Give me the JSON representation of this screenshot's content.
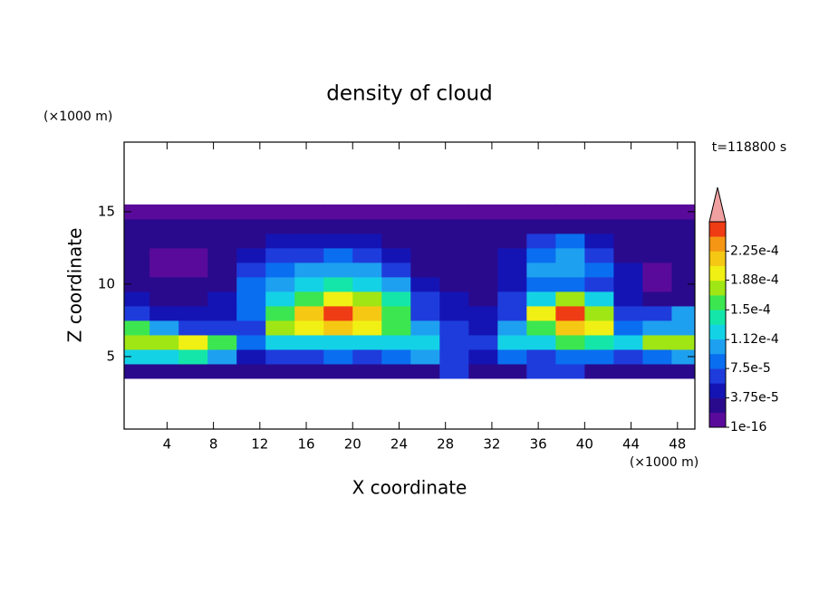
{
  "chart_data": {
    "type": "contour",
    "title": "density of cloud",
    "x_label": "X coordinate",
    "y_label": "Z coordinate",
    "x_unit": "(×1000 m)",
    "y_unit": "(×1000 m)",
    "annotation": "t=118800 s",
    "xlim": [
      0.3,
      49.5
    ],
    "ylim": [
      0,
      19.8
    ],
    "xticks": [
      4,
      8,
      12,
      16,
      20,
      24,
      28,
      32,
      36,
      40,
      44,
      48
    ],
    "yticks": [
      5,
      10,
      15
    ],
    "x": [
      1.25,
      3.75,
      6.25,
      8.75,
      11.25,
      13.75,
      16.25,
      18.75,
      21.25,
      23.75,
      26.25,
      28.75,
      31.25,
      33.75,
      36.25,
      38.75,
      41.25,
      43.75,
      46.25,
      48.75
    ],
    "y": [
      4,
      5,
      6,
      7,
      8,
      9,
      10,
      11,
      12,
      13,
      14,
      15
    ],
    "z": [
      [
        3e-05,
        3e-05,
        3e-05,
        3e-05,
        3e-05,
        3e-05,
        3e-05,
        3e-05,
        3e-05,
        3e-05,
        3e-05,
        6.5e-05,
        3e-05,
        3e-05,
        6.5e-05,
        6.5e-05,
        3e-05,
        3e-05,
        3e-05,
        3e-05
      ],
      [
        0.00012,
        0.00012,
        0.00014,
        0.0001,
        5e-05,
        6.5e-05,
        6.5e-05,
        8.5e-05,
        6.5e-05,
        8.5e-05,
        0.0001,
        6.5e-05,
        5e-05,
        8.5e-05,
        6.5e-05,
        8.5e-05,
        8.5e-05,
        6.5e-05,
        8.5e-05,
        0.0001
      ],
      [
        0.00018,
        0.00018,
        0.0002,
        0.00016,
        8.5e-05,
        0.00012,
        0.00012,
        0.00012,
        0.00012,
        0.00012,
        0.00012,
        6.5e-05,
        6.5e-05,
        0.00012,
        0.00012,
        0.00016,
        0.00014,
        0.00012,
        0.00018,
        0.00018
      ],
      [
        0.00016,
        0.0001,
        6.5e-05,
        6.5e-05,
        6.5e-05,
        0.00018,
        0.0002,
        0.000215,
        0.0002,
        0.00016,
        0.0001,
        6.5e-05,
        5e-05,
        0.0001,
        0.00016,
        0.000215,
        0.0002,
        8.5e-05,
        0.0001,
        0.0001
      ],
      [
        6.5e-05,
        5e-05,
        5e-05,
        5e-05,
        8.5e-05,
        0.00016,
        0.000215,
        0.00025,
        0.000215,
        0.00016,
        6.5e-05,
        5e-05,
        5e-05,
        6.5e-05,
        0.0002,
        0.00025,
        0.00018,
        6.5e-05,
        6.5e-05,
        0.0001
      ],
      [
        5e-05,
        3e-05,
        3e-05,
        5e-05,
        8.5e-05,
        0.00012,
        0.00016,
        0.0002,
        0.00018,
        0.00014,
        6.5e-05,
        5e-05,
        3e-05,
        6.5e-05,
        0.00012,
        0.00018,
        0.00012,
        5e-05,
        3e-05,
        3e-05
      ],
      [
        3e-05,
        3e-05,
        3e-05,
        3e-05,
        8.5e-05,
        0.0001,
        0.00012,
        0.00014,
        0.00012,
        0.0001,
        5e-05,
        3e-05,
        3e-05,
        5e-05,
        8.5e-05,
        8.5e-05,
        6.5e-05,
        5e-05,
        1e-05,
        3e-05
      ],
      [
        3e-05,
        1e-05,
        1e-05,
        3e-05,
        6.5e-05,
        8.5e-05,
        0.0001,
        0.0001,
        0.0001,
        6.5e-05,
        3e-05,
        3e-05,
        3e-05,
        5e-05,
        0.0001,
        0.0001,
        8.5e-05,
        5e-05,
        1e-05,
        3e-05
      ],
      [
        3e-05,
        1e-05,
        1e-05,
        3e-05,
        5e-05,
        6.5e-05,
        6.5e-05,
        8.5e-05,
        6.5e-05,
        5e-05,
        3e-05,
        3e-05,
        3e-05,
        5e-05,
        8.5e-05,
        0.0001,
        6.5e-05,
        3e-05,
        3e-05,
        3e-05
      ],
      [
        3e-05,
        3e-05,
        3e-05,
        3e-05,
        3e-05,
        5e-05,
        5e-05,
        5e-05,
        5e-05,
        3e-05,
        3e-05,
        3e-05,
        3e-05,
        3e-05,
        6.5e-05,
        8.5e-05,
        5e-05,
        3e-05,
        3e-05,
        3e-05
      ],
      [
        3e-05,
        3e-05,
        3e-05,
        3e-05,
        3e-05,
        3e-05,
        3e-05,
        3e-05,
        3e-05,
        3e-05,
        3e-05,
        3e-05,
        3e-05,
        3e-05,
        3e-05,
        3e-05,
        3e-05,
        3e-05,
        3e-05,
        3e-05
      ],
      [
        1e-05,
        1e-05,
        1e-05,
        1e-05,
        1e-05,
        1e-05,
        1e-05,
        1e-05,
        1e-05,
        1e-05,
        1e-05,
        1e-05,
        1e-05,
        1e-05,
        1e-05,
        1e-05,
        1e-05,
        1e-05,
        1e-05,
        1e-05
      ]
    ],
    "levels": [
      1e-16,
      1.875e-05,
      3.75e-05,
      5.625e-05,
      7.5e-05,
      9.375e-05,
      0.0001125,
      0.00013125,
      0.00015,
      0.00016875,
      0.0001875,
      0.00020625,
      0.000225,
      0.00024375,
      0.0002625
    ],
    "colors": [
      "#5a0a9b",
      "#2a0a8c",
      "#1414b4",
      "#1e3cdc",
      "#0a6ef0",
      "#1ea0f0",
      "#14d2e6",
      "#14e6aa",
      "#3ce650",
      "#a0e614",
      "#f0f014",
      "#f5c814",
      "#f59614",
      "#f03c14"
    ],
    "extend_color": "#f0a0a0",
    "colorbar_ticks": [
      {
        "value": 1e-16,
        "label": "1e-16"
      },
      {
        "value": 3.75e-05,
        "label": "3.75e-5"
      },
      {
        "value": 7.5e-05,
        "label": "7.5e-5"
      },
      {
        "value": 0.000112,
        "label": "1.12e-4"
      },
      {
        "value": 0.00015,
        "label": "1.5e-4"
      },
      {
        "value": 0.000188,
        "label": "1.88e-4"
      },
      {
        "value": 0.000225,
        "label": "2.25e-4"
      }
    ]
  }
}
